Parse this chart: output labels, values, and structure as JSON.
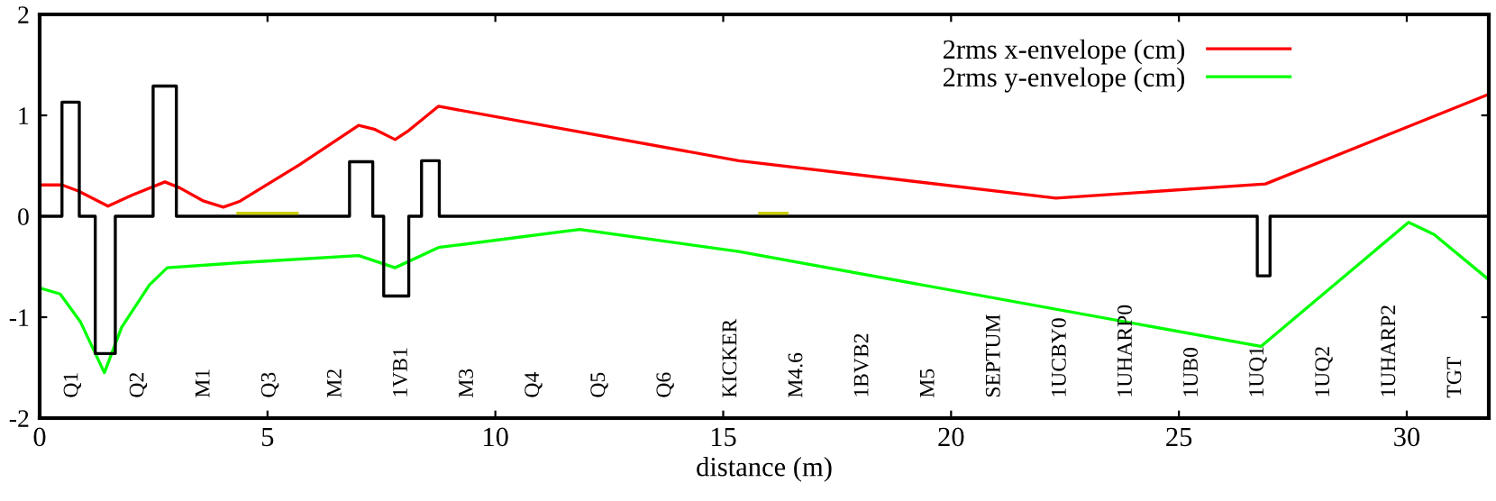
{
  "chart_data": {
    "type": "line",
    "xlabel": "distance (m)",
    "xlim": [
      0,
      31.8
    ],
    "ylim": [
      -2,
      2
    ],
    "xticks": [
      0,
      5,
      10,
      15,
      20,
      25,
      30
    ],
    "yticks": [
      -2,
      -1,
      0,
      1,
      2
    ],
    "grid": false,
    "legend": "top right",
    "marker": "none",
    "line_style": "solid",
    "series": [
      {
        "name": "2rms x-envelope (cm)",
        "color": "#ff0000",
        "x": [
          0,
          0.49,
          0.85,
          1.5,
          2.03,
          2.75,
          3.08,
          3.6,
          4.03,
          4.4,
          5.7,
          7.0,
          7.36,
          7.8,
          8.1,
          8.75,
          15.34,
          22.3,
          26.9,
          31.75
        ],
        "values": [
          0.31,
          0.31,
          0.25,
          0.1,
          0.21,
          0.34,
          0.28,
          0.15,
          0.09,
          0.15,
          0.51,
          0.9,
          0.86,
          0.76,
          0.85,
          1.09,
          0.55,
          0.18,
          0.32,
          1.2
        ]
      },
      {
        "name": "2rms y-envelope (cm)",
        "color": "#00ff00",
        "x": [
          0,
          0.45,
          0.9,
          1.42,
          1.8,
          2.41,
          2.8,
          4.4,
          7.0,
          7.8,
          8.75,
          11.85,
          15.34,
          26.8,
          30.04,
          30.6,
          31.75
        ],
        "values": [
          -0.71,
          -0.77,
          -1.05,
          -1.55,
          -1.1,
          -0.68,
          -0.51,
          -0.46,
          -0.39,
          -0.51,
          -0.31,
          -0.13,
          -0.35,
          -1.29,
          -0.06,
          -0.18,
          -0.61
        ]
      },
      {
        "color": "#000000",
        "x": [
          0,
          0.49,
          0.49,
          0.87,
          0.87,
          1.22,
          1.22,
          1.66,
          1.66,
          2.49,
          2.49,
          3.0,
          3.0,
          6.8,
          6.8,
          7.31,
          7.31,
          7.55,
          7.55,
          8.1,
          8.1,
          8.38,
          8.38,
          8.77,
          8.77,
          26.72,
          26.72,
          27.0,
          27.0,
          31.8
        ],
        "values": [
          0,
          0,
          1.13,
          1.13,
          0,
          0,
          -1.36,
          -1.36,
          0,
          0,
          1.29,
          1.29,
          0,
          0,
          0.54,
          0.54,
          0,
          0,
          -0.79,
          -0.79,
          0,
          0,
          0.55,
          0.55,
          0,
          0,
          -0.59,
          -0.59,
          0,
          0
        ]
      },
      {
        "color": "#cccc00",
        "x": [
          4.35,
          5.65,
          5.7,
          15.8,
          16.4
        ],
        "values": [
          0.03,
          0.03,
          null,
          0.03,
          0.03
        ]
      }
    ],
    "annotations": [
      "Q1",
      "Q2",
      "M1",
      "Q3",
      "M2",
      "1VB1",
      "M3",
      "Q4",
      "Q5",
      "Q6",
      "KICKER",
      "M4.6",
      "1BVB2",
      "M5",
      "SEPTUM",
      "1UCBY0",
      "1UHARP0",
      "1UB0",
      "1UQ1",
      "1UQ2",
      "1UHARP2",
      "TGT"
    ]
  }
}
